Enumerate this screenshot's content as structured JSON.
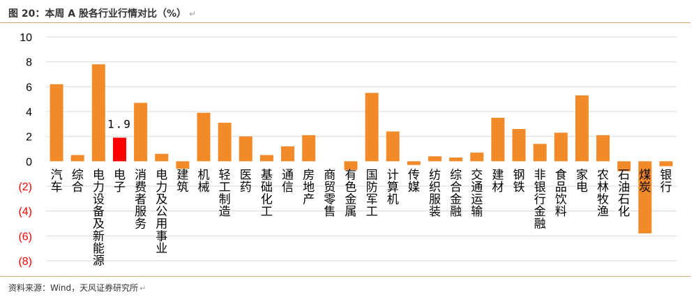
{
  "title": "图 20：本周 A 股各行业行情对比（%）",
  "source": "资料来源：Wind，天风证券研究所",
  "colors": {
    "bar_default": "#f28a2a",
    "bar_highlight": "#ff0000",
    "negative_tick": "#ff0000",
    "positive_tick": "#000000",
    "grid": "#d9d9d9",
    "rule": "#d2a56c"
  },
  "chart_data": {
    "type": "bar",
    "title": "",
    "xlabel": "",
    "ylabel": "",
    "ylim": [
      -8,
      10
    ],
    "yticks": [
      10,
      8,
      6,
      4,
      2,
      0,
      -2,
      -4,
      -6,
      -8
    ],
    "ytick_labels": [
      "10",
      "8",
      "6",
      "4",
      "2",
      "0",
      "(2)",
      "(4)",
      "(6)",
      "(8)"
    ],
    "grid": true,
    "categories": [
      "汽车",
      "综合",
      "电力设备及新能源",
      "电子",
      "消费者服务",
      "电力及公用事业",
      "建筑",
      "机械",
      "轻工制造",
      "医药",
      "基础化工",
      "通信",
      "房地产",
      "商贸零售",
      "有色金属",
      "国防军工",
      "计算机",
      "传媒",
      "纺织服装",
      "综合金融",
      "交通运输",
      "建材",
      "钢铁",
      "非银行金融",
      "食品饮料",
      "家电",
      "农林牧渔",
      "石油石化",
      "煤炭",
      "银行"
    ],
    "values": [
      6.2,
      0.5,
      7.8,
      1.9,
      4.7,
      0.6,
      -0.6,
      3.9,
      3.1,
      2.0,
      0.5,
      1.2,
      2.1,
      0.0,
      -0.7,
      5.5,
      2.4,
      -0.3,
      0.4,
      0.3,
      0.7,
      3.5,
      2.6,
      1.4,
      2.3,
      5.3,
      2.1,
      -0.8,
      -5.8,
      -0.4
    ],
    "highlight": {
      "category": "电子",
      "label": "1.9"
    }
  }
}
